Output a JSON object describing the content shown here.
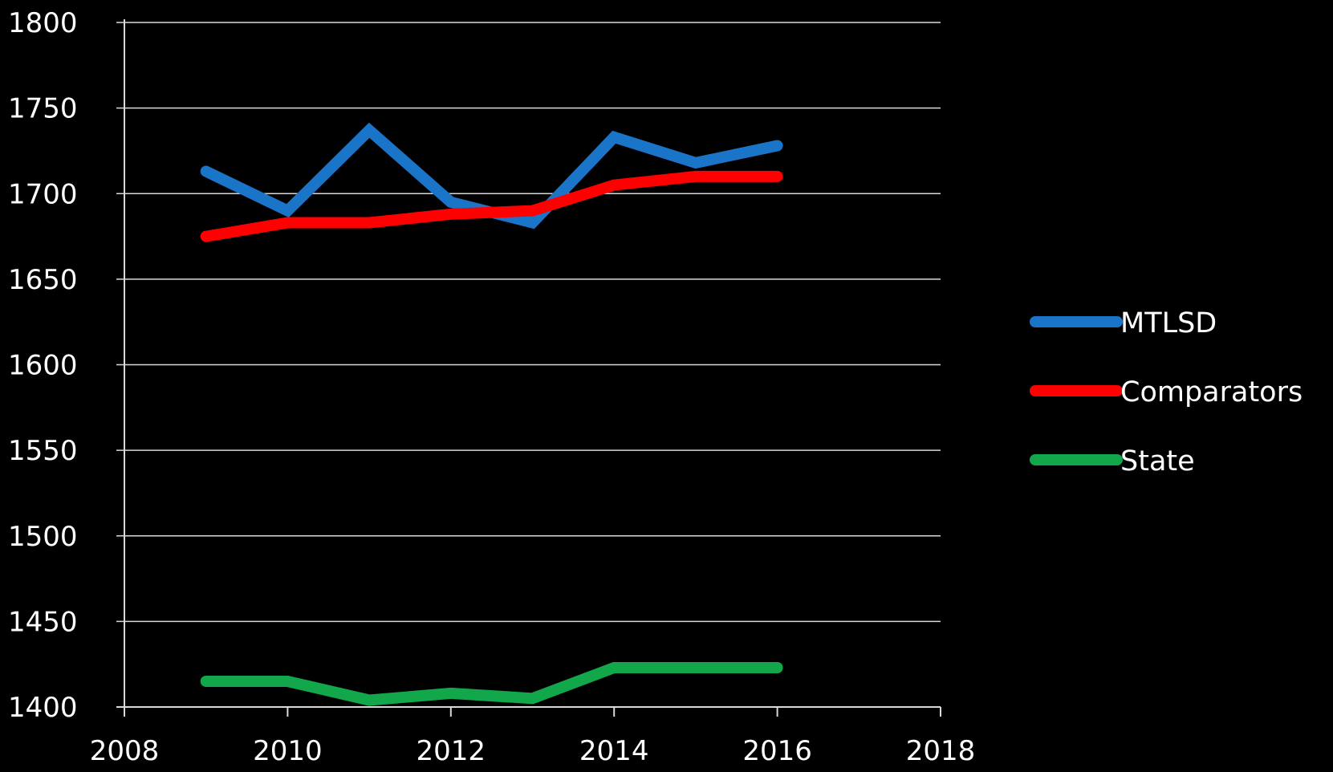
{
  "chart_data": {
    "type": "line",
    "title": "",
    "xlabel": "",
    "ylabel": "",
    "xlim": [
      2008,
      2018
    ],
    "ylim": [
      1400,
      1800
    ],
    "x_ticks": [
      2008,
      2010,
      2012,
      2014,
      2016,
      2018
    ],
    "y_ticks": [
      1400,
      1450,
      1500,
      1550,
      1600,
      1650,
      1700,
      1750,
      1800
    ],
    "grid": "horizontal",
    "legend_position": "right",
    "x": [
      2009,
      2010,
      2011,
      2012,
      2013,
      2014,
      2015,
      2016
    ],
    "series": [
      {
        "name": "MTLSD",
        "color": "#1a75c9",
        "values": [
          1713,
          1690,
          1737,
          1695,
          1683,
          1733,
          1718,
          1728
        ]
      },
      {
        "name": "Comparators",
        "color": "#ff0000",
        "values": [
          1675,
          1683,
          1683,
          1688,
          1690,
          1705,
          1710,
          1710
        ]
      },
      {
        "name": "State",
        "color": "#12a74a",
        "values": [
          1415,
          1415,
          1404,
          1408,
          1405,
          1423,
          1423,
          1423
        ]
      }
    ]
  },
  "colors": {
    "background": "#000000",
    "axis": "#d9d9d9",
    "grid": "#d9d9d9",
    "text": "#ffffff"
  }
}
